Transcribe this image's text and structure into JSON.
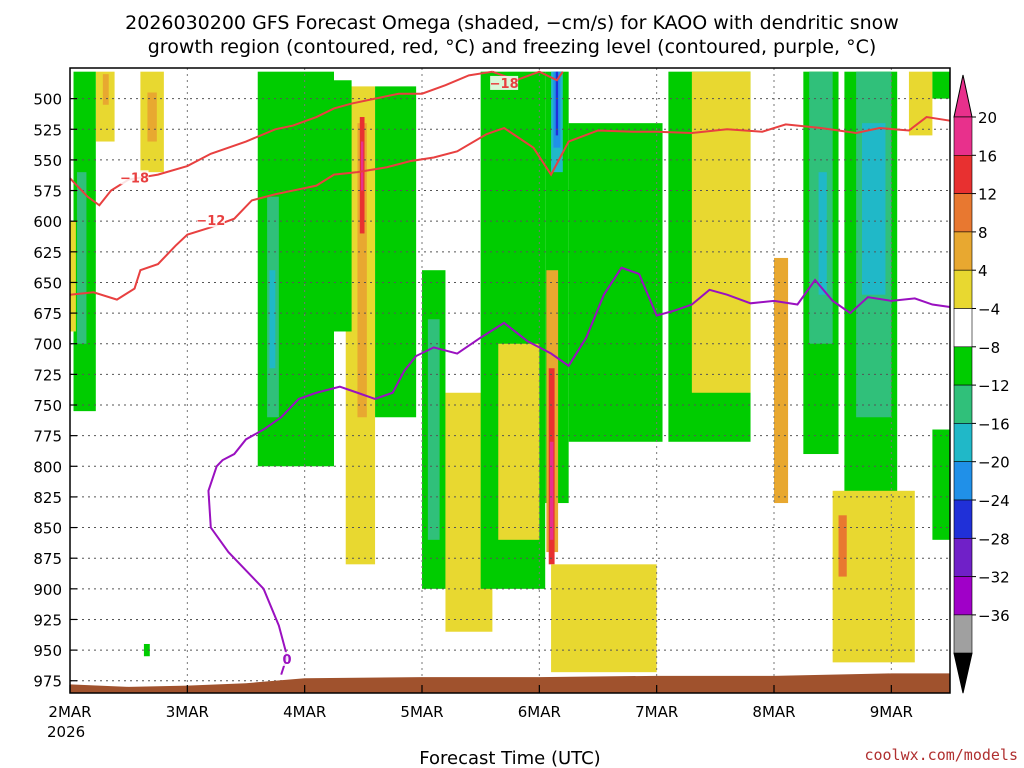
{
  "chart_data": {
    "type": "heatmap",
    "title_line1": "2026030200 GFS Forecast Omega (shaded, −cm/s) for KAOO with dendritic snow",
    "title_line2": "growth region (contoured, red, °C) and freezing level (contoured, purple, °C)",
    "xlabel": "Forecast Time (UTC)",
    "credit": "coolwx.com/models",
    "x_axis": {
      "ticks": [
        {
          "t": 0,
          "label": "2MAR"
        },
        {
          "t": 1,
          "label": "3MAR"
        },
        {
          "t": 2,
          "label": "4MAR"
        },
        {
          "t": 3,
          "label": "5MAR"
        },
        {
          "t": 4,
          "label": "6MAR"
        },
        {
          "t": 5,
          "label": "7MAR"
        },
        {
          "t": 6,
          "label": "8MAR"
        },
        {
          "t": 7,
          "label": "9MAR"
        }
      ],
      "year_label": "2026",
      "range": [
        0,
        7.5
      ]
    },
    "y_axis": {
      "ticks": [
        500,
        525,
        550,
        575,
        600,
        625,
        650,
        675,
        700,
        725,
        750,
        775,
        800,
        825,
        850,
        875,
        900,
        925,
        950,
        975
      ],
      "range": [
        475,
        985
      ]
    },
    "colorbar": {
      "labels": [
        "20",
        "16",
        "12",
        "8",
        "4",
        "−4",
        "−8",
        "−12",
        "−16",
        "−20",
        "−24",
        "−28",
        "−32",
        "−36"
      ],
      "colors": [
        "#e8308c",
        "#e83030",
        "#e87830",
        "#e8a830",
        "#e8d830",
        "#ffffff",
        "#00cc00",
        "#30c07a",
        "#20b8c8",
        "#2090e8",
        "#2030d8",
        "#7020c8",
        "#a000c8",
        "#a0a0a0"
      ],
      "top_color": "#e8308c",
      "bottom_color": "#000000"
    },
    "shaded_regions": [
      {
        "color": "#e8d830",
        "t0": 0.22,
        "t1": 0.38,
        "p0": 478,
        "p1": 535
      },
      {
        "color": "#e8a830",
        "t0": 0.28,
        "t1": 0.33,
        "p0": 480,
        "p1": 505
      },
      {
        "color": "#e8d830",
        "t0": 0.6,
        "t1": 0.8,
        "p0": 478,
        "p1": 560
      },
      {
        "color": "#e8a830",
        "t0": 0.66,
        "t1": 0.74,
        "p0": 495,
        "p1": 535
      },
      {
        "color": "#00cc00",
        "t0": 0.03,
        "t1": 0.22,
        "p0": 478,
        "p1": 755
      },
      {
        "color": "#30c07a",
        "t0": 0.06,
        "t1": 0.14,
        "p0": 560,
        "p1": 700
      },
      {
        "color": "#e8d830",
        "t0": 0.0,
        "t1": 0.05,
        "p0": 600,
        "p1": 690
      },
      {
        "color": "#00cc00",
        "t0": 0.63,
        "t1": 0.68,
        "p0": 945,
        "p1": 955
      },
      {
        "color": "#00cc00",
        "t0": 1.6,
        "t1": 2.25,
        "p0": 478,
        "p1": 800
      },
      {
        "color": "#30c07a",
        "t0": 1.68,
        "t1": 1.78,
        "p0": 580,
        "p1": 760
      },
      {
        "color": "#20b8c8",
        "t0": 1.7,
        "t1": 1.75,
        "p0": 640,
        "p1": 720
      },
      {
        "color": "#e8d830",
        "t0": 2.35,
        "t1": 2.6,
        "p0": 490,
        "p1": 880
      },
      {
        "color": "#e8a830",
        "t0": 2.45,
        "t1": 2.53,
        "p0": 520,
        "p1": 760
      },
      {
        "color": "#e83030",
        "t0": 2.47,
        "t1": 2.51,
        "p0": 515,
        "p1": 610
      },
      {
        "color": "#e8308c",
        "t0": 2.48,
        "t1": 2.5,
        "p0": 535,
        "p1": 575
      },
      {
        "color": "#00cc00",
        "t0": 2.2,
        "t1": 2.4,
        "p0": 485,
        "p1": 690
      },
      {
        "color": "#00cc00",
        "t0": 2.6,
        "t1": 2.95,
        "p0": 490,
        "p1": 760
      },
      {
        "color": "#00cc00",
        "t0": 3.0,
        "t1": 3.2,
        "p0": 640,
        "p1": 900
      },
      {
        "color": "#30c07a",
        "t0": 3.05,
        "t1": 3.15,
        "p0": 680,
        "p1": 860
      },
      {
        "color": "#e8d830",
        "t0": 3.2,
        "t1": 3.6,
        "p0": 740,
        "p1": 935
      },
      {
        "color": "#00cc00",
        "t0": 3.5,
        "t1": 4.05,
        "p0": 478,
        "p1": 900
      },
      {
        "color": "#e8d830",
        "t0": 3.65,
        "t1": 4.0,
        "p0": 700,
        "p1": 860
      },
      {
        "color": "#00cc00",
        "t0": 4.05,
        "t1": 4.25,
        "p0": 478,
        "p1": 830
      },
      {
        "color": "#e8a830",
        "t0": 4.06,
        "t1": 4.16,
        "p0": 640,
        "p1": 870
      },
      {
        "color": "#e83030",
        "t0": 4.08,
        "t1": 4.13,
        "p0": 720,
        "p1": 880
      },
      {
        "color": "#e8308c",
        "t0": 4.09,
        "t1": 4.12,
        "p0": 780,
        "p1": 860
      },
      {
        "color": "#20b8c8",
        "t0": 4.1,
        "t1": 4.2,
        "p0": 478,
        "p1": 560
      },
      {
        "color": "#2090e8",
        "t0": 4.12,
        "t1": 4.18,
        "p0": 478,
        "p1": 540
      },
      {
        "color": "#2030d8",
        "t0": 4.14,
        "t1": 4.16,
        "p0": 478,
        "p1": 530
      },
      {
        "color": "#e8d830",
        "t0": 4.1,
        "t1": 5.0,
        "p0": 880,
        "p1": 968
      },
      {
        "color": "#00cc00",
        "t0": 4.25,
        "t1": 5.05,
        "p0": 520,
        "p1": 780
      },
      {
        "color": "#00cc00",
        "t0": 5.1,
        "t1": 5.8,
        "p0": 478,
        "p1": 780
      },
      {
        "color": "#e8d830",
        "t0": 5.3,
        "t1": 5.8,
        "p0": 478,
        "p1": 740
      },
      {
        "color": "#e8a830",
        "t0": 6.0,
        "t1": 6.12,
        "p0": 630,
        "p1": 830
      },
      {
        "color": "#00cc00",
        "t0": 6.25,
        "t1": 6.55,
        "p0": 478,
        "p1": 790
      },
      {
        "color": "#30c07a",
        "t0": 6.3,
        "t1": 6.5,
        "p0": 478,
        "p1": 700
      },
      {
        "color": "#20b8c8",
        "t0": 6.38,
        "t1": 6.45,
        "p0": 560,
        "p1": 660
      },
      {
        "color": "#00cc00",
        "t0": 6.6,
        "t1": 7.05,
        "p0": 478,
        "p1": 830
      },
      {
        "color": "#30c07a",
        "t0": 6.7,
        "t1": 7.0,
        "p0": 478,
        "p1": 760
      },
      {
        "color": "#20b8c8",
        "t0": 6.75,
        "t1": 6.95,
        "p0": 520,
        "p1": 660
      },
      {
        "color": "#e8d830",
        "t0": 7.15,
        "t1": 7.35,
        "p0": 478,
        "p1": 530
      },
      {
        "color": "#e8d830",
        "t0": 6.5,
        "t1": 7.2,
        "p0": 820,
        "p1": 960
      },
      {
        "color": "#e87830",
        "t0": 6.55,
        "t1": 6.62,
        "p0": 840,
        "p1": 890
      },
      {
        "color": "#00cc00",
        "t0": 7.35,
        "t1": 7.5,
        "p0": 770,
        "p1": 860
      },
      {
        "color": "#00cc00",
        "t0": 7.35,
        "t1": 7.5,
        "p0": 478,
        "p1": 500
      }
    ],
    "contours_red": [
      {
        "label": "−18",
        "label_at": {
          "t": 0.55,
          "p": 565
        },
        "points": [
          [
            0,
            565
          ],
          [
            0.15,
            580
          ],
          [
            0.25,
            587
          ],
          [
            0.35,
            575
          ],
          [
            0.5,
            566
          ],
          [
            0.75,
            562
          ],
          [
            1.0,
            555
          ],
          [
            1.2,
            545
          ],
          [
            1.5,
            535
          ],
          [
            1.75,
            525
          ],
          [
            1.9,
            522
          ],
          [
            2.1,
            515
          ],
          [
            2.25,
            508
          ],
          [
            2.4,
            504
          ],
          [
            2.6,
            500
          ],
          [
            2.8,
            496
          ],
          [
            3.0,
            496
          ],
          [
            3.2,
            489
          ],
          [
            3.4,
            481
          ],
          [
            3.6,
            478
          ]
        ]
      },
      {
        "label": "−12",
        "label_at": {
          "t": 1.2,
          "p": 600
        },
        "points": [
          [
            0,
            660
          ],
          [
            0.2,
            658
          ],
          [
            0.4,
            664
          ],
          [
            0.55,
            655
          ],
          [
            0.6,
            640
          ],
          [
            0.75,
            635
          ],
          [
            0.9,
            620
          ],
          [
            1.0,
            611
          ],
          [
            1.2,
            605
          ],
          [
            1.4,
            598
          ],
          [
            1.55,
            583
          ],
          [
            1.75,
            578
          ],
          [
            1.9,
            575
          ],
          [
            2.1,
            571
          ],
          [
            2.25,
            562
          ],
          [
            2.45,
            560
          ],
          [
            2.7,
            556
          ],
          [
            2.9,
            551
          ],
          [
            3.1,
            548
          ],
          [
            3.3,
            543
          ],
          [
            3.55,
            529
          ],
          [
            3.7,
            524
          ],
          [
            3.95,
            540
          ],
          [
            4.1,
            562
          ],
          [
            4.25,
            535
          ],
          [
            4.5,
            526
          ],
          [
            4.8,
            527
          ],
          [
            5.0,
            527
          ],
          [
            5.3,
            528
          ],
          [
            5.6,
            525
          ],
          [
            5.9,
            527
          ],
          [
            6.1,
            521
          ],
          [
            6.4,
            524
          ],
          [
            6.7,
            528
          ],
          [
            6.9,
            524
          ],
          [
            7.15,
            526
          ],
          [
            7.3,
            515
          ],
          [
            7.5,
            518
          ]
        ]
      },
      {
        "label": "−18",
        "label_at": {
          "t": 3.7,
          "p": 488
        },
        "points": [
          [
            3.6,
            478
          ],
          [
            3.8,
            485
          ],
          [
            4.0,
            478
          ],
          [
            4.15,
            485
          ],
          [
            4.2,
            478
          ]
        ]
      }
    ],
    "contours_purple": [
      {
        "label": "0",
        "label_at": {
          "t": 1.85,
          "p": 958
        },
        "points": [
          [
            1.8,
            970
          ],
          [
            1.85,
            955
          ],
          [
            1.78,
            930
          ],
          [
            1.65,
            900
          ],
          [
            1.5,
            885
          ],
          [
            1.35,
            870
          ],
          [
            1.2,
            850
          ],
          [
            1.18,
            820
          ],
          [
            1.25,
            800
          ],
          [
            1.3,
            795
          ],
          [
            1.4,
            790
          ],
          [
            1.5,
            778
          ],
          [
            1.65,
            770
          ],
          [
            1.8,
            760
          ],
          [
            1.95,
            745
          ],
          [
            2.1,
            740
          ],
          [
            2.3,
            735
          ],
          [
            2.45,
            740
          ],
          [
            2.6,
            745
          ],
          [
            2.75,
            740
          ],
          [
            2.85,
            722
          ],
          [
            2.95,
            710
          ],
          [
            3.1,
            703
          ],
          [
            3.3,
            708
          ],
          [
            3.5,
            695
          ],
          [
            3.7,
            683
          ],
          [
            3.9,
            698
          ],
          [
            4.1,
            708
          ],
          [
            4.25,
            718
          ],
          [
            4.4,
            695
          ],
          [
            4.55,
            660
          ],
          [
            4.7,
            638
          ],
          [
            4.85,
            643
          ],
          [
            5.0,
            677
          ],
          [
            5.15,
            673
          ],
          [
            5.3,
            668
          ],
          [
            5.45,
            656
          ],
          [
            5.6,
            660
          ],
          [
            5.8,
            667
          ],
          [
            6.0,
            665
          ],
          [
            6.2,
            668
          ],
          [
            6.35,
            648
          ],
          [
            6.5,
            665
          ],
          [
            6.65,
            675
          ],
          [
            6.8,
            662
          ],
          [
            7.0,
            665
          ],
          [
            7.2,
            663
          ],
          [
            7.35,
            668
          ],
          [
            7.5,
            670
          ]
        ]
      }
    ],
    "terrain": {
      "color": "#a0522d",
      "points": [
        [
          0,
          978
        ],
        [
          0.5,
          980
        ],
        [
          1.0,
          979
        ],
        [
          1.5,
          977
        ],
        [
          2.0,
          973
        ],
        [
          3.0,
          972
        ],
        [
          4.0,
          972
        ],
        [
          5.0,
          971
        ],
        [
          6.0,
          971
        ],
        [
          7.0,
          969
        ],
        [
          7.5,
          969
        ]
      ]
    }
  }
}
